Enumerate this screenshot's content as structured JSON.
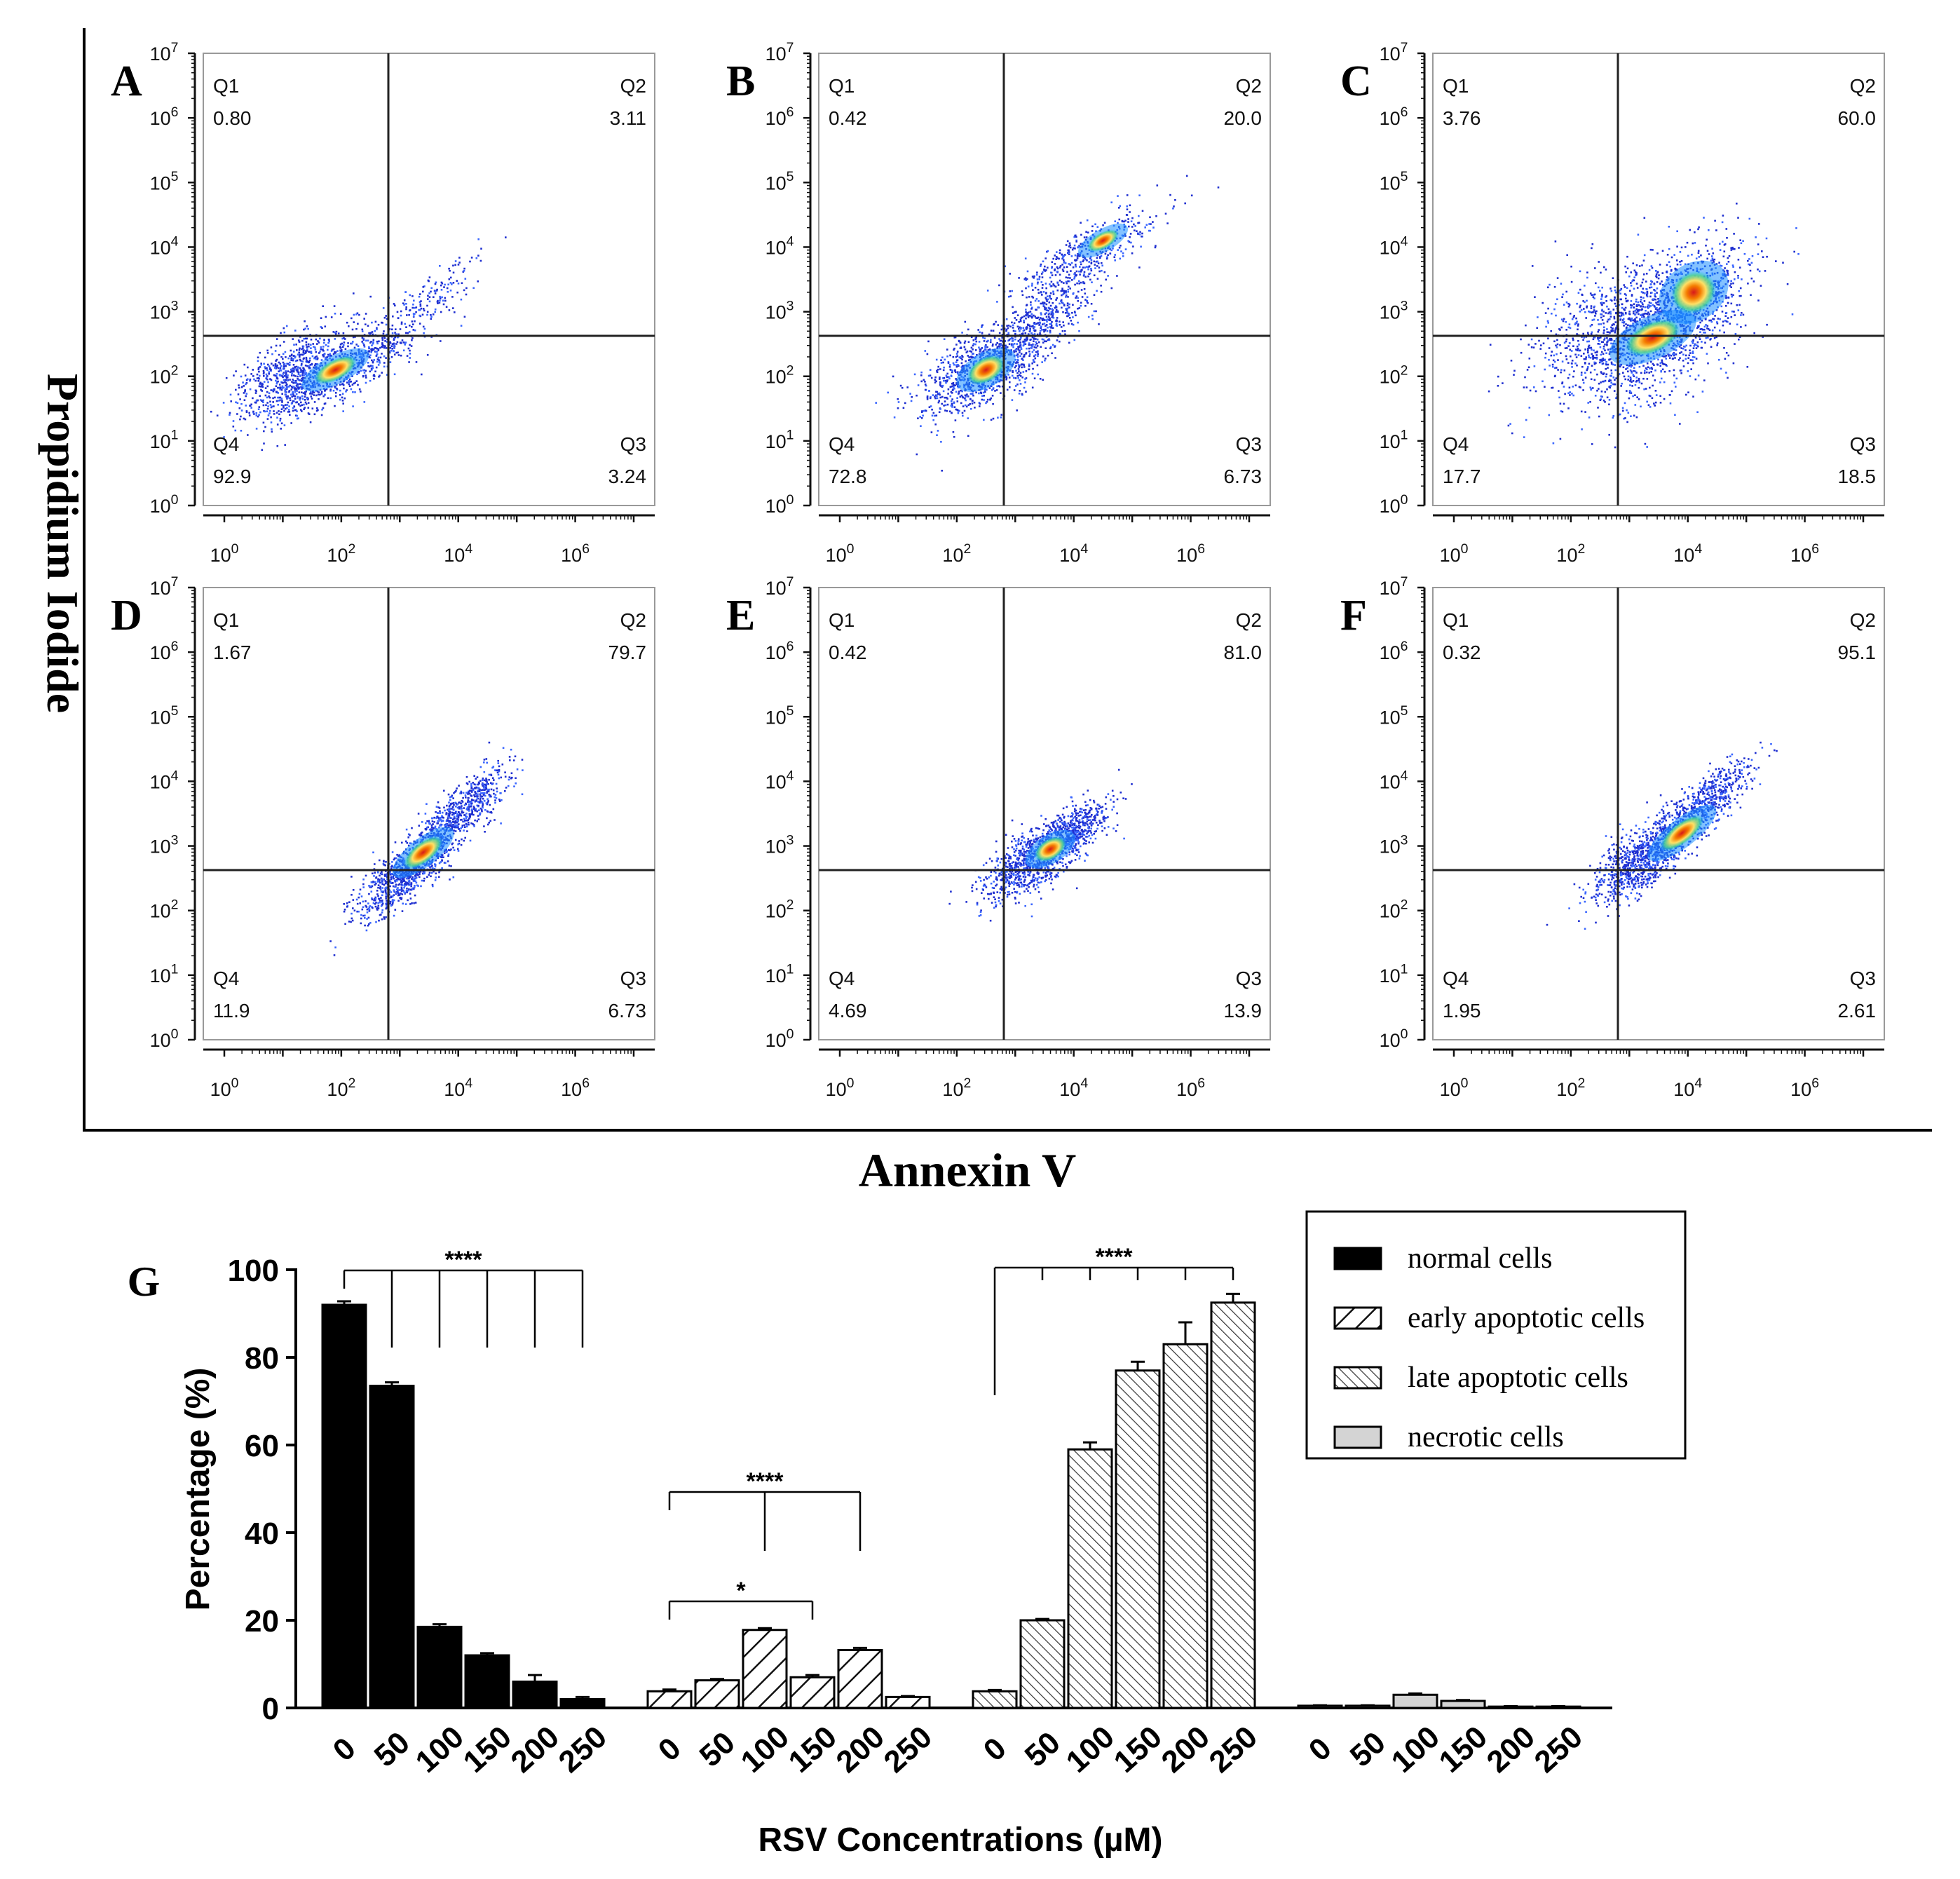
{
  "figure": {
    "y_label": "Propidium Iodide",
    "x_label": "Annexin V"
  },
  "chart_data": [
    {
      "type": "scatter",
      "panel": "A",
      "x_ticks": [
        "10^0",
        "10^2",
        "10^4",
        "10^6"
      ],
      "y_ticks": [
        "10^0",
        "10^1",
        "10^2",
        "10^3",
        "10^4",
        "10^5",
        "10^6",
        "10^7"
      ],
      "xscale": "log",
      "yscale": "log",
      "quadrants": [
        {
          "name": "Q1",
          "value": "0.80"
        },
        {
          "name": "Q2",
          "value": "3.11"
        },
        {
          "name": "Q4",
          "value": "92.9"
        },
        {
          "name": "Q3",
          "value": "3.24"
        }
      ],
      "cloud": [
        {
          "x": 1.2,
          "y": 2.0,
          "sx": 0.55,
          "sy": 0.28,
          "rot": 28,
          "n": 900
        },
        {
          "x": 2.4,
          "y": 2.3,
          "sx": 0.6,
          "sy": 0.22,
          "rot": 32,
          "n": 500
        },
        {
          "x": 3.6,
          "y": 3.3,
          "sx": 0.5,
          "sy": 0.16,
          "rot": 40,
          "n": 120
        }
      ],
      "core": [
        {
          "x": 1.9,
          "y": 2.1,
          "sx": 0.4,
          "sy": 0.1,
          "rot": 28
        }
      ]
    },
    {
      "type": "scatter",
      "panel": "B",
      "x_ticks": [
        "10^0",
        "10^2",
        "10^4",
        "10^6"
      ],
      "y_ticks": [
        "10^0",
        "10^1",
        "10^2",
        "10^3",
        "10^4",
        "10^5",
        "10^6",
        "10^7"
      ],
      "xscale": "log",
      "yscale": "log",
      "quadrants": [
        {
          "name": "Q1",
          "value": "0.42"
        },
        {
          "name": "Q2",
          "value": "20.0"
        },
        {
          "name": "Q4",
          "value": "72.8"
        },
        {
          "name": "Q3",
          "value": "6.73"
        }
      ],
      "cloud": [
        {
          "x": 2.4,
          "y": 2.1,
          "sx": 0.55,
          "sy": 0.28,
          "rot": 30,
          "n": 900
        },
        {
          "x": 3.4,
          "y": 2.8,
          "sx": 0.6,
          "sy": 0.22,
          "rot": 38,
          "n": 500
        },
        {
          "x": 4.2,
          "y": 3.9,
          "sx": 0.7,
          "sy": 0.2,
          "rot": 30,
          "n": 450
        }
      ],
      "core": [
        {
          "x": 2.5,
          "y": 2.1,
          "sx": 0.35,
          "sy": 0.12,
          "rot": 30
        },
        {
          "x": 4.5,
          "y": 4.1,
          "sx": 0.3,
          "sy": 0.08,
          "rot": 30
        }
      ]
    },
    {
      "type": "scatter",
      "panel": "C",
      "x_ticks": [
        "10^0",
        "10^2",
        "10^4",
        "10^6"
      ],
      "y_ticks": [
        "10^0",
        "10^1",
        "10^2",
        "10^3",
        "10^4",
        "10^5",
        "10^6",
        "10^7"
      ],
      "xscale": "log",
      "yscale": "log",
      "quadrants": [
        {
          "name": "Q1",
          "value": "3.76"
        },
        {
          "name": "Q2",
          "value": "60.0"
        },
        {
          "name": "Q4",
          "value": "17.7"
        },
        {
          "name": "Q3",
          "value": "18.5"
        }
      ],
      "cloud": [
        {
          "x": 2.9,
          "y": 2.6,
          "sx": 0.8,
          "sy": 0.55,
          "rot": 20,
          "n": 1200
        },
        {
          "x": 3.9,
          "y": 3.1,
          "sx": 0.75,
          "sy": 0.4,
          "rot": 35,
          "n": 1000
        }
      ],
      "core": [
        {
          "x": 3.4,
          "y": 2.6,
          "sx": 0.5,
          "sy": 0.15,
          "rot": 25
        },
        {
          "x": 4.1,
          "y": 3.3,
          "sx": 0.4,
          "sy": 0.2,
          "rot": 35
        }
      ]
    },
    {
      "type": "scatter",
      "panel": "D",
      "x_ticks": [
        "10^0",
        "10^2",
        "10^4",
        "10^6"
      ],
      "y_ticks": [
        "10^0",
        "10^1",
        "10^2",
        "10^3",
        "10^4",
        "10^5",
        "10^6",
        "10^7"
      ],
      "xscale": "log",
      "yscale": "log",
      "quadrants": [
        {
          "name": "Q1",
          "value": "1.67"
        },
        {
          "name": "Q2",
          "value": "79.7"
        },
        {
          "name": "Q4",
          "value": "11.9"
        },
        {
          "name": "Q3",
          "value": "6.73"
        }
      ],
      "cloud": [
        {
          "x": 3.1,
          "y": 2.6,
          "sx": 0.5,
          "sy": 0.18,
          "rot": 38,
          "n": 900
        },
        {
          "x": 4.0,
          "y": 3.5,
          "sx": 0.55,
          "sy": 0.16,
          "rot": 40,
          "n": 700
        }
      ],
      "core": [
        {
          "x": 3.4,
          "y": 2.9,
          "sx": 0.4,
          "sy": 0.1,
          "rot": 38
        }
      ]
    },
    {
      "type": "scatter",
      "panel": "E",
      "x_ticks": [
        "10^0",
        "10^2",
        "10^4",
        "10^6"
      ],
      "y_ticks": [
        "10^0",
        "10^1",
        "10^2",
        "10^3",
        "10^4",
        "10^5",
        "10^6",
        "10^7"
      ],
      "xscale": "log",
      "yscale": "log",
      "quadrants": [
        {
          "name": "Q1",
          "value": "0.42"
        },
        {
          "name": "Q2",
          "value": "81.0"
        },
        {
          "name": "Q4",
          "value": "4.69"
        },
        {
          "name": "Q3",
          "value": "13.9"
        }
      ],
      "cloud": [
        {
          "x": 3.3,
          "y": 2.8,
          "sx": 0.5,
          "sy": 0.2,
          "rot": 32,
          "n": 900
        },
        {
          "x": 3.9,
          "y": 3.2,
          "sx": 0.4,
          "sy": 0.16,
          "rot": 35,
          "n": 500
        }
      ],
      "core": [
        {
          "x": 3.6,
          "y": 2.95,
          "sx": 0.3,
          "sy": 0.1,
          "rot": 32
        }
      ]
    },
    {
      "type": "scatter",
      "panel": "F",
      "x_ticks": [
        "10^0",
        "10^2",
        "10^4",
        "10^6"
      ],
      "y_ticks": [
        "10^0",
        "10^1",
        "10^2",
        "10^3",
        "10^4",
        "10^5",
        "10^6",
        "10^7"
      ],
      "xscale": "log",
      "yscale": "log",
      "quadrants": [
        {
          "name": "Q1",
          "value": "0.32"
        },
        {
          "name": "Q2",
          "value": "95.1"
        },
        {
          "name": "Q4",
          "value": "1.95"
        },
        {
          "name": "Q3",
          "value": "2.61"
        }
      ],
      "cloud": [
        {
          "x": 3.2,
          "y": 2.8,
          "sx": 0.5,
          "sy": 0.2,
          "rot": 36,
          "n": 900
        },
        {
          "x": 4.2,
          "y": 3.6,
          "sx": 0.55,
          "sy": 0.16,
          "rot": 40,
          "n": 700
        }
      ],
      "core": [
        {
          "x": 3.9,
          "y": 3.2,
          "sx": 0.45,
          "sy": 0.1,
          "rot": 38
        }
      ]
    },
    {
      "type": "bar",
      "panel": "G",
      "categories": [
        "0",
        "50",
        "100",
        "150",
        "200",
        "250"
      ],
      "xlabel": "RSV Concentrations (µM)",
      "ylabel": "Percentage (%)",
      "ylim": [
        0,
        100
      ],
      "yticks": [
        0,
        20,
        40,
        60,
        80,
        100
      ],
      "series": [
        {
          "name": "normal cells",
          "pattern": "solid",
          "values": [
            92,
            73.5,
            18.5,
            12,
            6,
            2
          ],
          "errors": [
            0.8,
            0.8,
            0.6,
            0.5,
            1.5,
            0.5
          ]
        },
        {
          "name": "early apoptotic cells",
          "pattern": "hatch-wide",
          "values": [
            3.8,
            6.3,
            17.8,
            7,
            13.2,
            2.5
          ],
          "errors": [
            0.4,
            0.3,
            0.4,
            0.5,
            0.5,
            0.2
          ]
        },
        {
          "name": "late apoptotic cells",
          "pattern": "hatch-dense",
          "values": [
            3.8,
            20,
            59,
            77,
            83,
            92.5
          ],
          "errors": [
            0.3,
            0.3,
            1.6,
            2.0,
            5.0,
            2.0
          ]
        },
        {
          "name": "necrotic cells",
          "pattern": "gray",
          "values": [
            0.5,
            0.5,
            3,
            1.6,
            0.3,
            0.3
          ],
          "errors": [
            0.1,
            0.1,
            0.3,
            0.2,
            0.1,
            0.1
          ]
        }
      ],
      "annotations": [
        {
          "series": 0,
          "from": 0,
          "to": [
            1,
            2,
            3,
            4,
            5
          ],
          "label": "****"
        },
        {
          "series": 1,
          "from": 0,
          "to": [
            2,
            4
          ],
          "label": "****"
        },
        {
          "series": 1,
          "from": 0,
          "to": [
            3
          ],
          "label": "*"
        },
        {
          "series": 2,
          "from": 0,
          "to": [
            1,
            2,
            3,
            4,
            5
          ],
          "label": "****"
        }
      ],
      "legend_position": "top-right"
    }
  ]
}
